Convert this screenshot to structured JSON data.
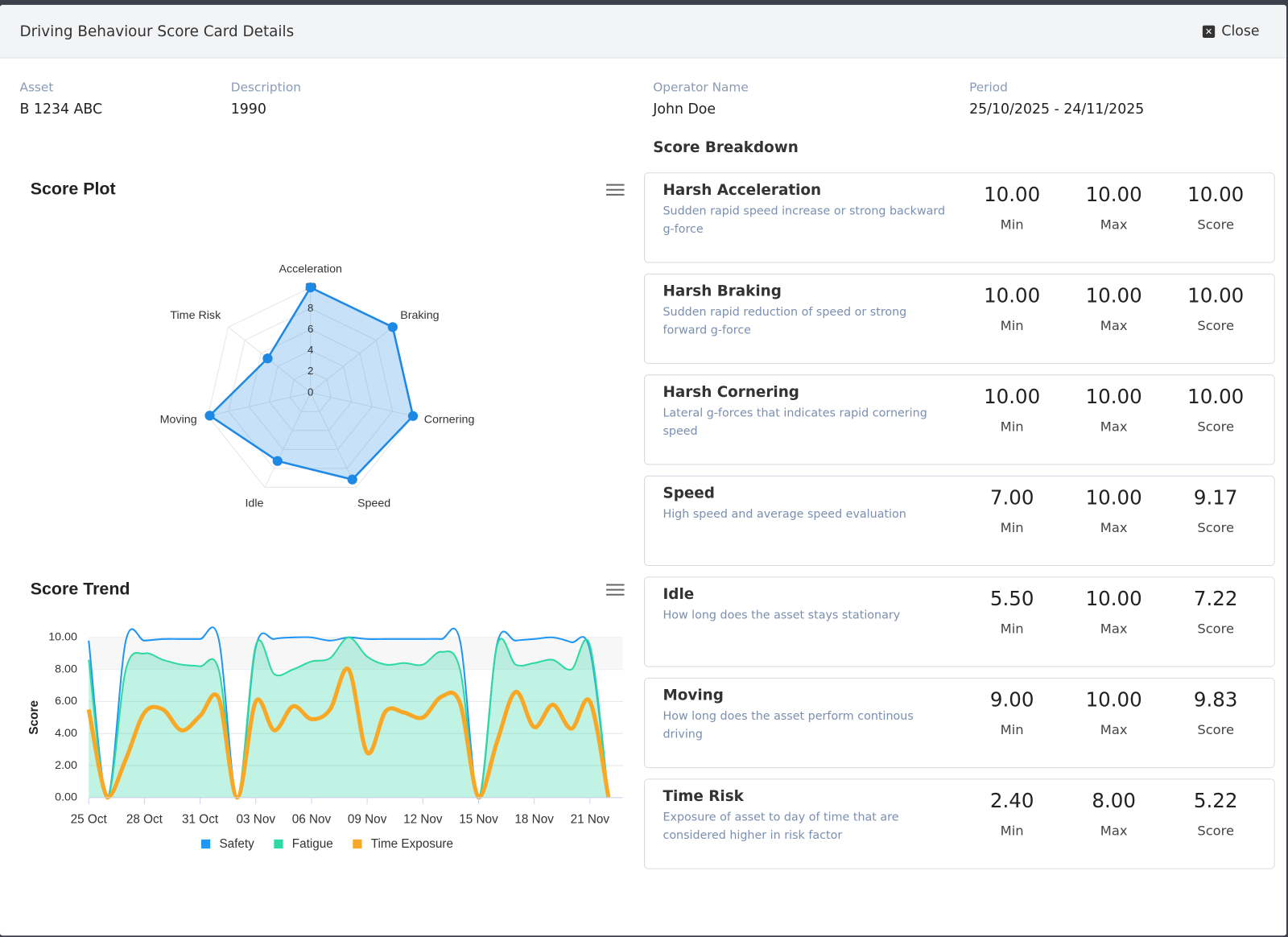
{
  "header": {
    "title": "Driving Behaviour Score Card Details",
    "close": "Close"
  },
  "fields": [
    {
      "label": "Asset",
      "value": "B 1234 ABC"
    },
    {
      "label": "Description",
      "value": "1990"
    },
    {
      "label": "Operator Name",
      "value": "John Doe"
    },
    {
      "label": "Period",
      "value": "25/10/2025 - 24/11/2025"
    }
  ],
  "score_breakdown": {
    "title": "Score Breakdown",
    "column_labels": [
      "Min",
      "Max",
      "Score"
    ],
    "items": [
      {
        "name": "Harsh Acceleration",
        "description": "Sudden rapid speed increase or strong backward g-force",
        "min": "10.00",
        "max": "10.00",
        "score": "10.00"
      },
      {
        "name": "Harsh Braking",
        "description": "Sudden rapid reduction of speed or strong forward g-force",
        "min": "10.00",
        "max": "10.00",
        "score": "10.00"
      },
      {
        "name": "Harsh Cornering",
        "description": "Lateral g-forces that indicates rapid cornering speed",
        "min": "10.00",
        "max": "10.00",
        "score": "10.00"
      },
      {
        "name": "Speed",
        "description": "High speed and average speed evaluation",
        "min": "7.00",
        "max": "10.00",
        "score": "9.17"
      },
      {
        "name": "Idle",
        "description": "How long does the asset stays stationary",
        "min": "5.50",
        "max": "10.00",
        "score": "7.22"
      },
      {
        "name": "Moving",
        "description": "How long does the asset perform continous driving",
        "min": "9.00",
        "max": "10.00",
        "score": "9.83"
      },
      {
        "name": "Time Risk",
        "description": "Exposure of asset to day of time that are considered higher in risk factor",
        "min": "2.40",
        "max": "8.00",
        "score": "5.22"
      }
    ]
  },
  "chart_data": [
    {
      "type": "radar",
      "title": "Score Plot",
      "categories": [
        "Acceleration",
        "Braking",
        "Cornering",
        "Speed",
        "Idle",
        "Moving",
        "Time Risk"
      ],
      "values": [
        10,
        10,
        10,
        9.17,
        7.22,
        9.83,
        5.22
      ],
      "color": "#1e88e5",
      "ylim": [
        0,
        10
      ],
      "yticks": [
        0,
        2,
        4,
        6,
        8,
        10
      ],
      "grid": true
    },
    {
      "type": "line",
      "title": "Score Trend",
      "y_label": "Score",
      "categories": [
        "25 Oct",
        null,
        null,
        "28 Oct",
        null,
        null,
        "31 Oct",
        null,
        null,
        "03 Nov",
        null,
        null,
        "06 Nov",
        null,
        null,
        "09 Nov",
        null,
        null,
        "12 Nov",
        null,
        null,
        "15 Nov",
        null,
        null,
        "18 Nov",
        null,
        null,
        "21 Nov",
        null
      ],
      "series": [
        {
          "name": "Safety",
          "color": "#2196f3",
          "values": [
            9.8,
            0,
            9.8,
            9.8,
            9.9,
            9.9,
            9.9,
            9.9,
            0,
            9.4,
            9.9,
            10,
            10,
            9.8,
            10,
            9.9,
            9.9,
            9.9,
            9.9,
            9.9,
            9.8,
            0,
            9.6,
            9.8,
            9.9,
            10,
            9.7,
            9.2,
            0
          ]
        },
        {
          "name": "Fatigue",
          "color": "#2ed8a3",
          "area": true,
          "values": [
            8.6,
            0,
            8,
            9,
            8.6,
            8.3,
            8.2,
            8,
            0,
            9.5,
            7.7,
            8,
            8.5,
            8.7,
            10,
            8.8,
            8.3,
            8.4,
            8.3,
            9.1,
            8,
            0,
            9.5,
            8.3,
            8.4,
            8.6,
            8,
            9.5,
            0
          ]
        },
        {
          "name": "Time Exposure",
          "color": "#f9a825",
          "values": [
            5.5,
            0,
            2.4,
            5.3,
            5.5,
            4.2,
            5.1,
            6.2,
            0,
            6,
            4.2,
            5.7,
            4.9,
            5.5,
            8,
            2.8,
            5.4,
            5.3,
            5,
            6.3,
            5.9,
            0,
            3.5,
            6.6,
            4.4,
            5.8,
            4.3,
            6,
            0
          ]
        }
      ],
      "ylim": [
        0,
        10
      ],
      "yticks": [
        {
          "value": 0,
          "label": "0.00"
        },
        {
          "value": 2,
          "label": "2.00"
        },
        {
          "value": 4,
          "label": "4.00"
        },
        {
          "value": 6,
          "label": "6.00"
        },
        {
          "value": 8,
          "label": "8.00"
        },
        {
          "value": 10,
          "label": "10.00"
        }
      ],
      "grid": true,
      "legend": "bottom"
    }
  ]
}
